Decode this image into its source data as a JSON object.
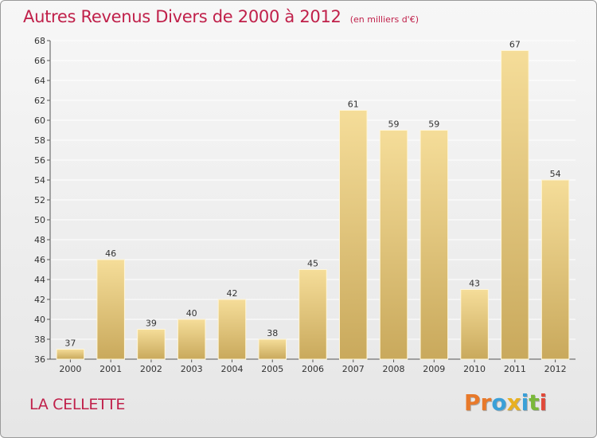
{
  "header": {
    "title": "Autres Revenus Divers de 2000 à 2012",
    "subtitle": "(en milliers d'€)"
  },
  "footer": {
    "commune": "LA CELLETTE",
    "brand_letters": [
      "P",
      "r",
      "o",
      "x",
      "i",
      "t",
      "i"
    ],
    "brand_colors": [
      "#e8792a",
      "#e8792a",
      "#3aa0d8",
      "#e8b020",
      "#3aa0d8",
      "#7ab83a",
      "#e04a3a"
    ]
  },
  "chart_data": {
    "type": "bar",
    "title": "Autres Revenus Divers de 2000 à 2012",
    "subtitle": "(en milliers d'€)",
    "xlabel": "",
    "ylabel": "",
    "categories": [
      "2000",
      "2001",
      "2002",
      "2003",
      "2004",
      "2005",
      "2006",
      "2007",
      "2008",
      "2009",
      "2010",
      "2011",
      "2012"
    ],
    "values": [
      37,
      46,
      39,
      40,
      42,
      38,
      45,
      61,
      59,
      59,
      43,
      67,
      54
    ],
    "ylim": [
      36,
      68
    ],
    "yticks": [
      36,
      38,
      40,
      42,
      44,
      46,
      48,
      50,
      52,
      54,
      56,
      58,
      60,
      62,
      64,
      66,
      68
    ],
    "grid": true,
    "bar_color_light": "#f5dd99",
    "bar_color_dark": "#c9a95c",
    "grid_color": "#ffffff"
  }
}
